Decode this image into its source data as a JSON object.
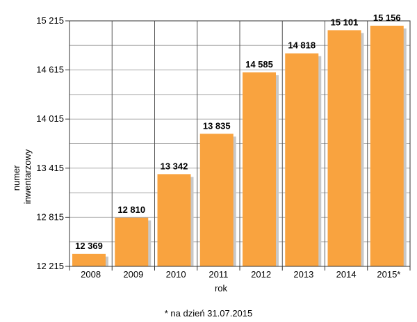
{
  "chart_data": {
    "type": "bar",
    "categories": [
      "2008",
      "2009",
      "2010",
      "2011",
      "2012",
      "2013",
      "2014",
      "2015*"
    ],
    "values": [
      12369,
      12810,
      13342,
      13835,
      14585,
      14818,
      15101,
      15156
    ],
    "value_labels": [
      "12 369",
      "12 810",
      "13 342",
      "13 835",
      "14 585",
      "14 818",
      "15 101",
      "15 156"
    ],
    "yticks": [
      12215,
      12815,
      13415,
      14015,
      14615,
      15215
    ],
    "ytick_labels": [
      "12 215",
      "12 815",
      "13 415",
      "14 015",
      "14 615",
      "15 215"
    ],
    "ylim": [
      12215,
      15215
    ],
    "xlabel": "rok",
    "ylabel_lines": [
      "numer",
      "inwentarzowy"
    ],
    "footnote": "* na dzień 31.07.2015",
    "grid": true,
    "bar_color": "#f9a33f",
    "shadow_color": "#c8c8c8",
    "grid_color": "#a8a8a8"
  }
}
